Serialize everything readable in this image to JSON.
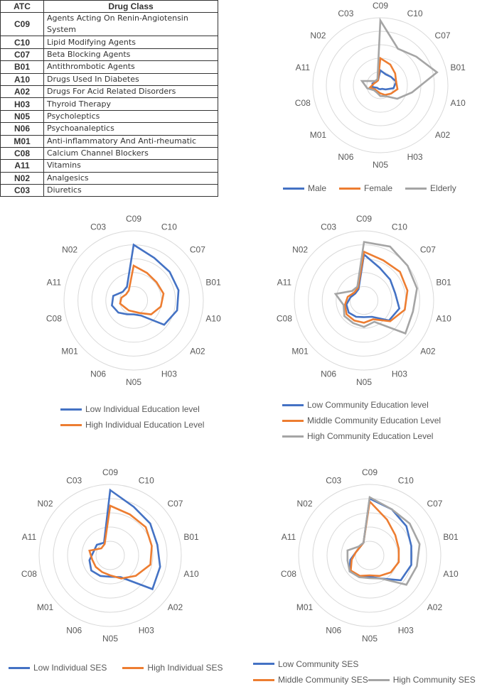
{
  "table": {
    "headers": [
      "ATC",
      "Drug Class"
    ],
    "rows": [
      [
        "C09",
        "Agents Acting On Renin-Angiotensin System"
      ],
      [
        "C10",
        "Lipid Modifying Agents"
      ],
      [
        "C07",
        "Beta Blocking Agents"
      ],
      [
        "B01",
        "Antithrombotic Agents"
      ],
      [
        "A10",
        "Drugs Used In Diabetes"
      ],
      [
        "A02",
        "Drugs For Acid Related Disorders"
      ],
      [
        "H03",
        "Thyroid Therapy"
      ],
      [
        "N05",
        "Psycholeptics"
      ],
      [
        "N06",
        "Psychoanaleptics"
      ],
      [
        "M01",
        "Anti-inflammatory And Anti-rheumatic"
      ],
      [
        "C08",
        "Calcium Channel Blockers"
      ],
      [
        "A11",
        "Vitamins"
      ],
      [
        "N02",
        "Analgesics"
      ],
      [
        "C03",
        "Diuretics"
      ]
    ]
  },
  "colors": {
    "blue": "#4472C4",
    "orange": "#ED7D31",
    "gray": "#A5A5A5"
  },
  "chart_data": [
    {
      "type": "radar",
      "id": "sex-age",
      "categories": [
        "C09",
        "C10",
        "C07",
        "B01",
        "A10",
        "A02",
        "H03",
        "N05",
        "N06",
        "M01",
        "C08",
        "A11",
        "N02",
        "C03"
      ],
      "rmax": 5,
      "series": [
        {
          "name": "Male",
          "color": "#4472C4",
          "values": [
            1.1,
            0.9,
            1.0,
            1.2,
            1.0,
            0.5,
            0.3,
            0.3,
            0.3,
            0.3,
            0.6,
            0.6,
            0.4,
            0.4
          ]
        },
        {
          "name": "Female",
          "color": "#ED7D31",
          "values": [
            2.0,
            1.7,
            1.4,
            1.2,
            1.3,
            1.0,
            0.8,
            0.6,
            0.5,
            0.5,
            0.8,
            0.5,
            0.4,
            0.4
          ]
        },
        {
          "name": "Elderly",
          "color": "#A5A5A5",
          "values": [
            4.8,
            3.0,
            3.4,
            4.3,
            2.4,
            1.6,
            0.9,
            0.8,
            0.6,
            0.6,
            1.0,
            1.4,
            0.5,
            0.5
          ]
        }
      ]
    },
    {
      "type": "radar",
      "id": "indiv-education",
      "categories": [
        "C09",
        "C10",
        "C07",
        "B01",
        "A10",
        "A02",
        "H03",
        "N05",
        "N06",
        "M01",
        "C08",
        "A11",
        "N02",
        "C03"
      ],
      "rmax": 5,
      "series": [
        {
          "name": "Low Individual Education level",
          "color": "#4472C4",
          "values": [
            4.0,
            3.4,
            3.3,
            3.3,
            3.2,
            2.8,
            1.2,
            1.0,
            1.1,
            1.4,
            1.6,
            1.5,
            1.0,
            1.1
          ]
        },
        {
          "name": "High Individual Education Level",
          "color": "#ED7D31",
          "values": [
            2.5,
            2.2,
            2.1,
            2.2,
            2.0,
            1.6,
            1.0,
            0.8,
            0.8,
            0.8,
            1.0,
            0.9,
            0.7,
            0.8
          ]
        }
      ]
    },
    {
      "type": "radar",
      "id": "community-education",
      "categories": [
        "C09",
        "C10",
        "C07",
        "B01",
        "A10",
        "A02",
        "H03",
        "N05",
        "N06",
        "M01",
        "C08",
        "A11",
        "N02",
        "C03"
      ],
      "rmax": 5,
      "series": [
        {
          "name": "Low Community Education level",
          "color": "#4472C4",
          "values": [
            3.3,
            2.6,
            2.4,
            2.3,
            2.6,
            2.3,
            1.3,
            1.2,
            1.3,
            1.4,
            1.3,
            1.0,
            0.8,
            0.9
          ]
        },
        {
          "name": "Middle Community Education Level",
          "color": "#ED7D31",
          "values": [
            3.5,
            3.2,
            3.3,
            3.2,
            3.0,
            2.4,
            1.5,
            1.6,
            1.6,
            1.6,
            1.4,
            1.2,
            0.9,
            1.0
          ]
        },
        {
          "name": "High Community Education Level",
          "color": "#A5A5A5",
          "values": [
            4.2,
            4.3,
            4.0,
            3.9,
            3.6,
            3.8,
            1.7,
            1.9,
            1.8,
            1.8,
            1.5,
            2.1,
            1.1,
            1.1
          ]
        }
      ]
    },
    {
      "type": "radar",
      "id": "indiv-ses",
      "categories": [
        "C09",
        "C10",
        "C07",
        "B01",
        "A10",
        "A02",
        "H03",
        "N05",
        "N06",
        "M01",
        "C08",
        "A11",
        "N02",
        "C03"
      ],
      "rmax": 5,
      "series": [
        {
          "name": "Low Individual SES",
          "color": "#4472C4",
          "values": [
            4.6,
            3.8,
            3.6,
            3.4,
            3.6,
            3.8,
            1.7,
            1.5,
            1.6,
            1.7,
            1.5,
            1.2,
            1.2,
            1.0
          ]
        },
        {
          "name": "High Individual SES",
          "color": "#ED7D31",
          "values": [
            3.5,
            3.2,
            3.2,
            3.0,
            2.9,
            2.3,
            1.8,
            1.4,
            1.3,
            1.3,
            1.3,
            1.5,
            0.8,
            0.9
          ]
        }
      ]
    },
    {
      "type": "radar",
      "id": "community-ses",
      "categories": [
        "C09",
        "C10",
        "C07",
        "B01",
        "A10",
        "A02",
        "H03",
        "N05",
        "N06",
        "M01",
        "C08",
        "A11",
        "N02",
        "C03"
      ],
      "rmax": 5,
      "series": [
        {
          "name": "Low Community SES",
          "color": "#4472C4",
          "values": [
            4.0,
            3.6,
            3.3,
            3.0,
            3.0,
            2.8,
            1.8,
            1.5,
            1.6,
            1.8,
            1.4,
            1.0,
            0.9,
            1.0
          ]
        },
        {
          "name": "Middle Community SES",
          "color": "#ED7D31",
          "values": [
            3.8,
            2.8,
            2.3,
            2.1,
            2.1,
            1.9,
            1.6,
            1.4,
            1.6,
            1.7,
            1.3,
            1.0,
            0.9,
            1.0
          ]
        },
        {
          "name": "High Community SES",
          "color": "#A5A5A5",
          "values": [
            4.1,
            3.6,
            3.6,
            3.6,
            3.4,
            3.3,
            1.8,
            1.6,
            1.7,
            1.8,
            1.6,
            1.6,
            1.0,
            1.0
          ]
        }
      ]
    }
  ]
}
